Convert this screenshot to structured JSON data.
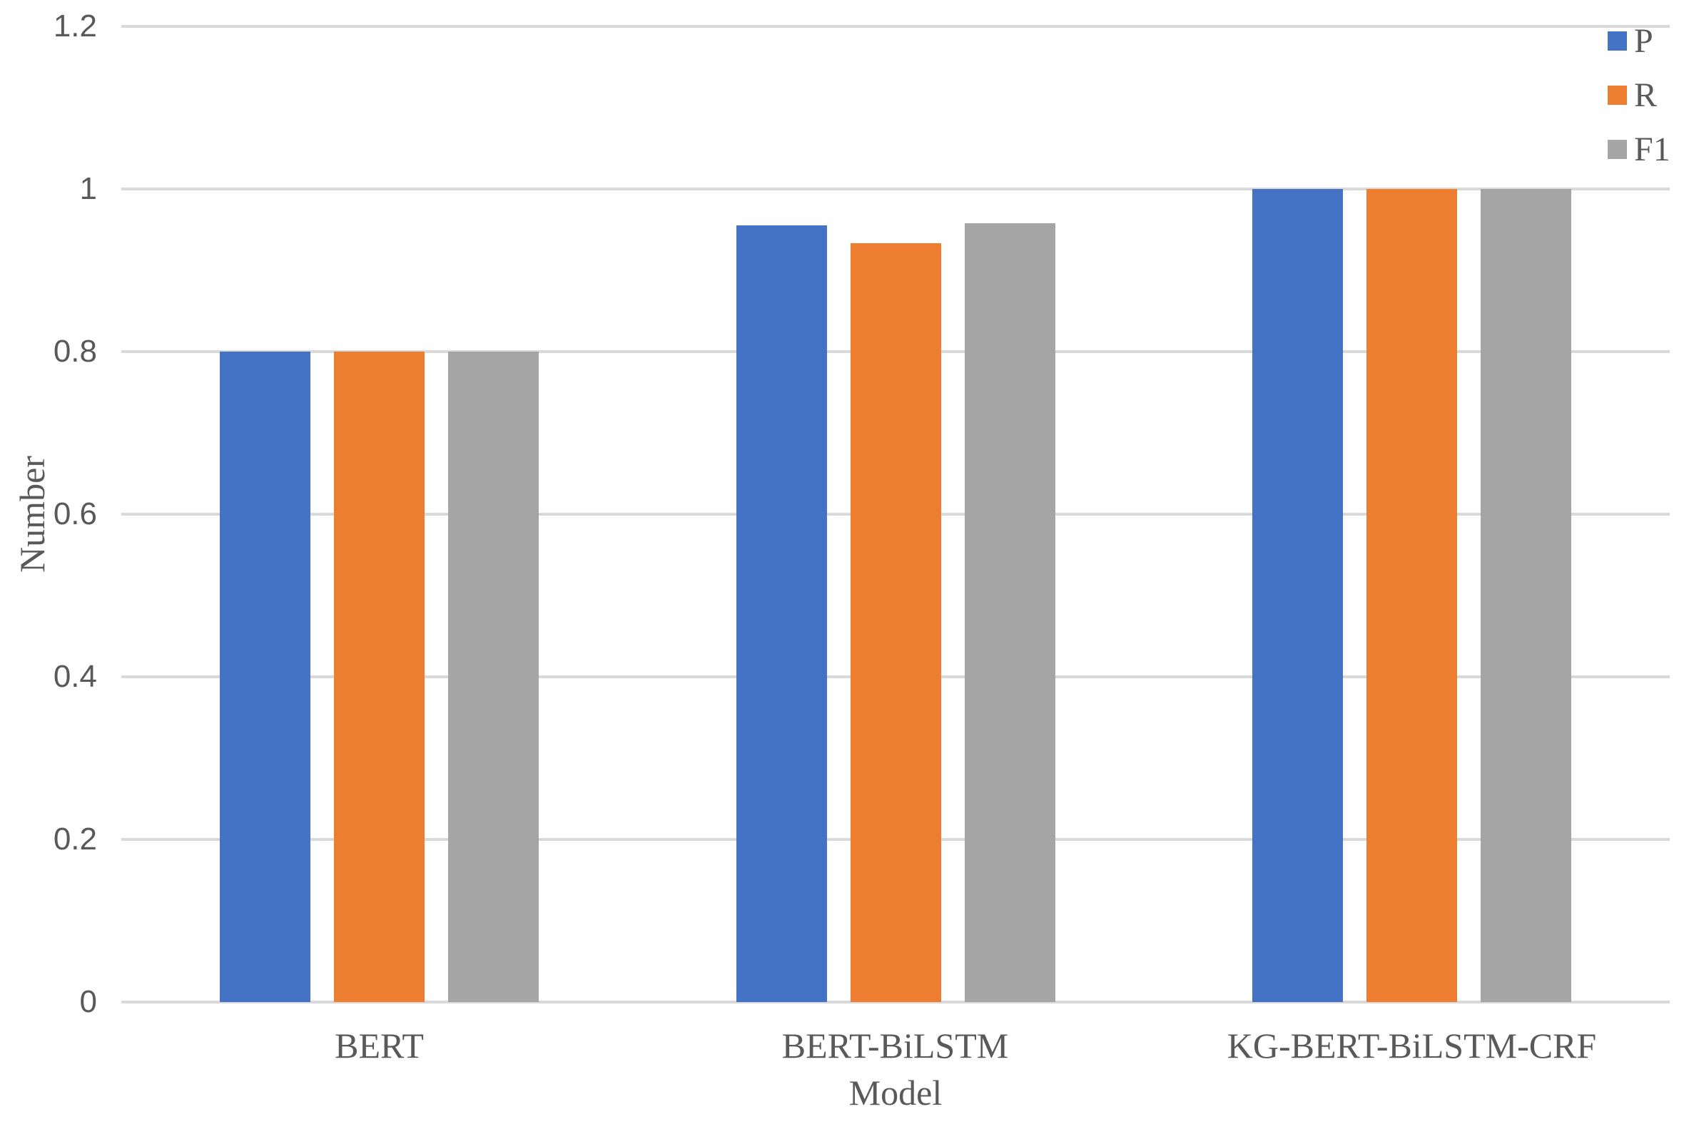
{
  "chart_data": {
    "type": "bar",
    "title": "",
    "categories": [
      "BERT",
      "BERT-BiLSTM",
      "KG-BERT-BiLSTM-CRF"
    ],
    "series": [
      {
        "name": "P",
        "color": "#4472C4",
        "values": [
          0.8,
          0.955,
          1.0
        ]
      },
      {
        "name": "R",
        "color": "#ED7D31",
        "values": [
          0.8,
          0.933,
          1.0
        ]
      },
      {
        "name": "F1",
        "color": "#A5A5A5",
        "values": [
          0.8,
          0.958,
          1.0
        ]
      }
    ],
    "xlabel": "Model",
    "ylabel": "Number",
    "ylim": [
      0,
      1.2
    ],
    "yticks": [
      0,
      0.2,
      0.4,
      0.6,
      0.8,
      1,
      1.2
    ],
    "ytick_labels": [
      "0",
      "0.2",
      "0.4",
      "0.6",
      "0.8",
      "1",
      "1.2"
    ],
    "grid": "horizontal",
    "legend_position": "top-right",
    "colors": {
      "gridline": "#D9D9D9",
      "axis_line": "#D9D9D9",
      "text": "#595959",
      "background": "#FFFFFF"
    }
  }
}
